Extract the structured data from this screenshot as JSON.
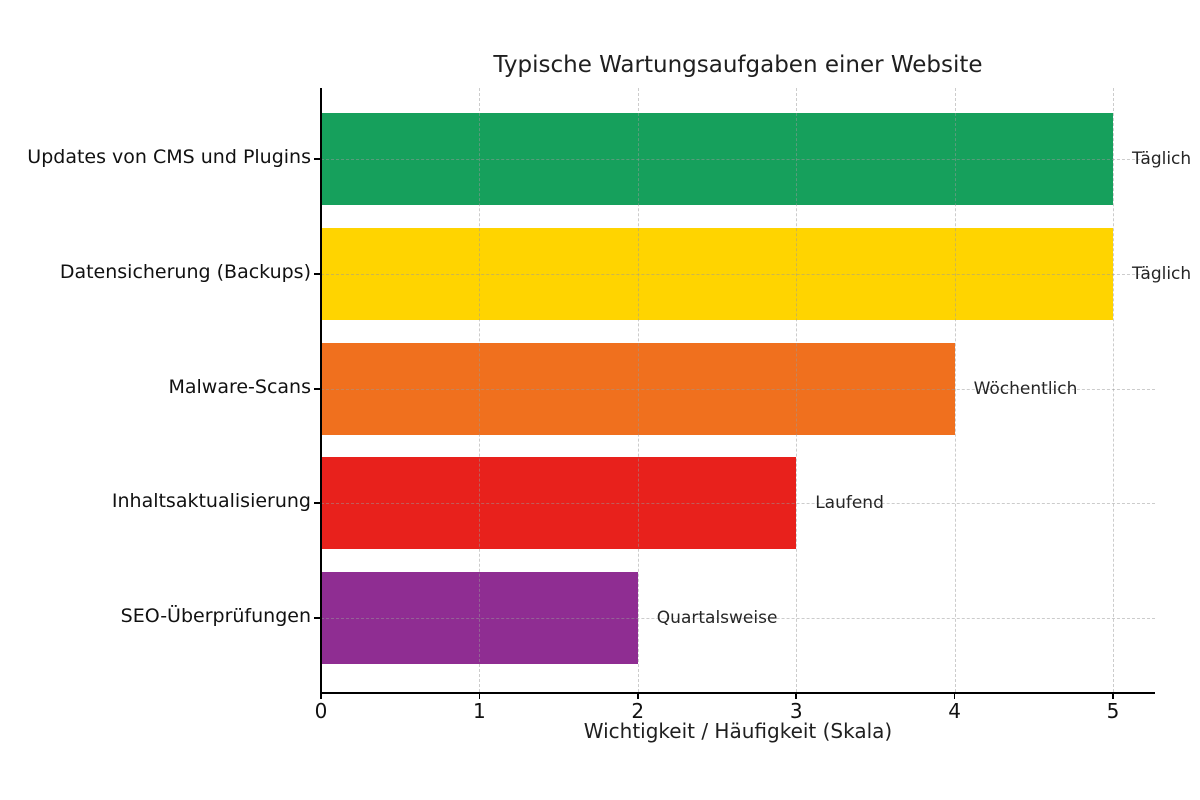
{
  "chart_data": {
    "type": "bar",
    "orientation": "horizontal",
    "title": "Typische Wartungsaufgaben einer Website",
    "xlabel": "Wichtigkeit / Häufigkeit (Skala)",
    "ylabel": "",
    "categories": [
      "Updates von CMS und Plugins",
      "Datensicherung (Backups)",
      "Malware-Scans",
      "Inhaltsaktualisierung",
      "SEO-Überprüfungen"
    ],
    "values": [
      5,
      5,
      4,
      3,
      2
    ],
    "bar_annotations": [
      "Täglich",
      "Täglich",
      "Wöchentlich",
      "Laufend",
      "Quartalsweise"
    ],
    "bar_colors": [
      "#16a05c",
      "#ffd400",
      "#f0701e",
      "#e8211c",
      "#8f2d92"
    ],
    "xticks": [
      "0",
      "1",
      "2",
      "3",
      "4",
      "5"
    ],
    "xlim": [
      0,
      5.27
    ],
    "grid": true,
    "grid_style": "dashed",
    "grid_color": "#9a9a9a",
    "legend": "none",
    "background_color": "#ffffff",
    "text_color": "#1f1f1f"
  }
}
